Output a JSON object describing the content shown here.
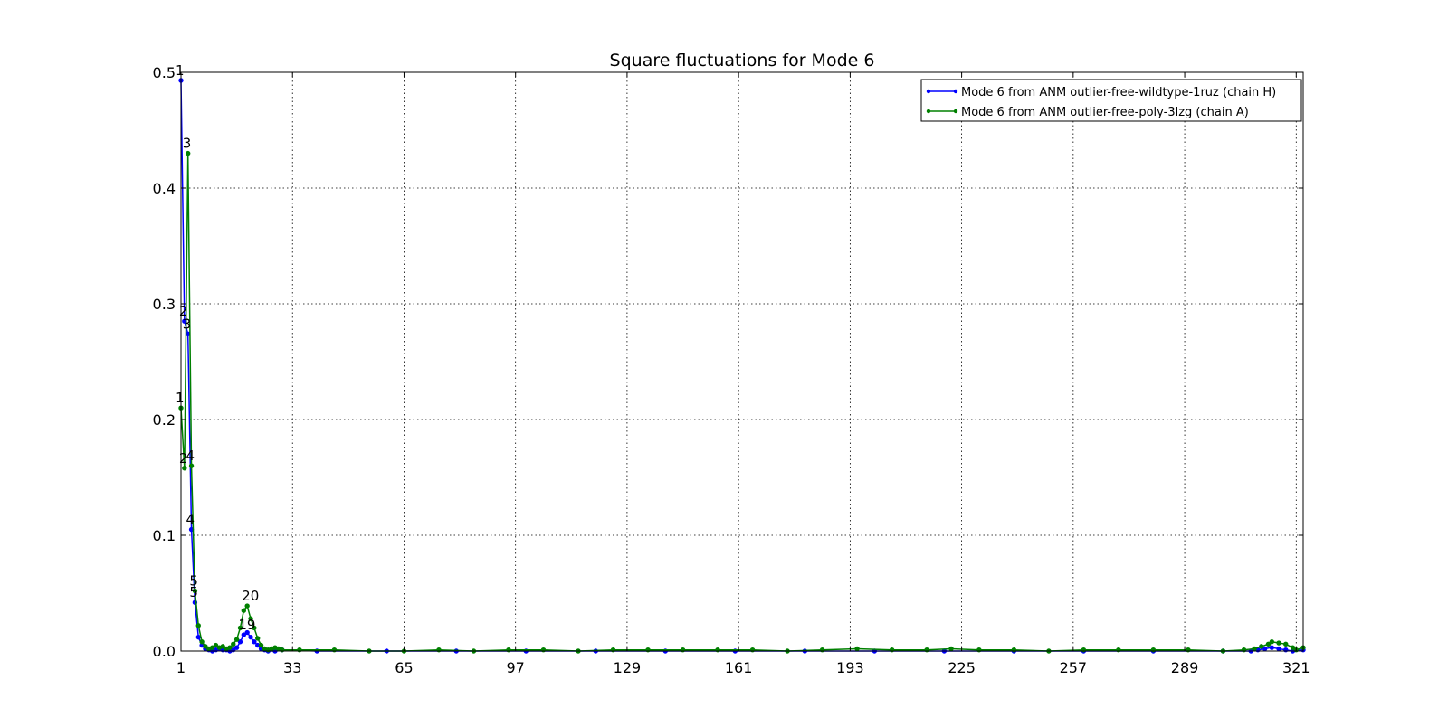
{
  "chart_data": {
    "type": "line",
    "title": "Square fluctuations for Mode 6",
    "xlabel": "",
    "ylabel": "",
    "xlim": [
      1,
      323
    ],
    "ylim": [
      0,
      0.5
    ],
    "xticks": [
      1,
      33,
      65,
      97,
      129,
      161,
      193,
      225,
      257,
      289,
      321
    ],
    "yticks": [
      0.0,
      0.1,
      0.2,
      0.3,
      0.4,
      0.5
    ],
    "ytick_labels": [
      "0.0",
      "0.1",
      "0.2",
      "0.3",
      "0.4",
      "0.5"
    ],
    "grid": true,
    "legend_position": "top-right",
    "series": [
      {
        "name": "Mode 6 from ANM outlier-free-wildtype-1ruz (chain H)",
        "color": "#0000ff",
        "points": [
          [
            1,
            0.493
          ],
          [
            2,
            0.285
          ],
          [
            3,
            0.274
          ],
          [
            4,
            0.105
          ],
          [
            5,
            0.042
          ],
          [
            6,
            0.012
          ],
          [
            7,
            0.005
          ],
          [
            8,
            0.002
          ],
          [
            9,
            0.001
          ],
          [
            10,
            0.0
          ],
          [
            11,
            0.001
          ],
          [
            12,
            0.002
          ],
          [
            13,
            0.001
          ],
          [
            14,
            0.001
          ],
          [
            15,
            0.0
          ],
          [
            16,
            0.001
          ],
          [
            17,
            0.003
          ],
          [
            18,
            0.008
          ],
          [
            19,
            0.014
          ],
          [
            20,
            0.016
          ],
          [
            21,
            0.012
          ],
          [
            22,
            0.008
          ],
          [
            23,
            0.005
          ],
          [
            24,
            0.002
          ],
          [
            25,
            0.001
          ],
          [
            26,
            0.0
          ],
          [
            28,
            0.0
          ],
          [
            30,
            0.001
          ],
          [
            40,
            0.0
          ],
          [
            60,
            0.0
          ],
          [
            80,
            0.0
          ],
          [
            100,
            0.0
          ],
          [
            120,
            0.0
          ],
          [
            140,
            0.0
          ],
          [
            160,
            0.0
          ],
          [
            180,
            0.0
          ],
          [
            200,
            0.0
          ],
          [
            220,
            0.0
          ],
          [
            240,
            0.0
          ],
          [
            260,
            0.0
          ],
          [
            280,
            0.0
          ],
          [
            300,
            0.0
          ],
          [
            308,
            0.0
          ],
          [
            310,
            0.001
          ],
          [
            312,
            0.002
          ],
          [
            314,
            0.003
          ],
          [
            316,
            0.002
          ],
          [
            318,
            0.001
          ],
          [
            320,
            0.0
          ],
          [
            323,
            0.001
          ]
        ],
        "labels": [
          {
            "x": 1,
            "y": 0.493,
            "text": "1"
          },
          {
            "x": 2,
            "y": 0.285,
            "text": "2"
          },
          {
            "x": 3,
            "y": 0.274,
            "text": "3"
          },
          {
            "x": 4,
            "y": 0.105,
            "text": "4"
          },
          {
            "x": 5,
            "y": 0.042,
            "text": "5"
          },
          {
            "x": 19,
            "y": 0.014,
            "text": "19"
          }
        ]
      },
      {
        "name": "Mode 6 from ANM outlier-free-poly-3lzg (chain A)",
        "color": "#008000",
        "points": [
          [
            1,
            0.21
          ],
          [
            2,
            0.158
          ],
          [
            3,
            0.43
          ],
          [
            4,
            0.16
          ],
          [
            5,
            0.052
          ],
          [
            6,
            0.022
          ],
          [
            7,
            0.008
          ],
          [
            8,
            0.004
          ],
          [
            9,
            0.002
          ],
          [
            10,
            0.003
          ],
          [
            11,
            0.005
          ],
          [
            12,
            0.003
          ],
          [
            13,
            0.004
          ],
          [
            14,
            0.002
          ],
          [
            15,
            0.003
          ],
          [
            16,
            0.006
          ],
          [
            17,
            0.01
          ],
          [
            18,
            0.02
          ],
          [
            19,
            0.035
          ],
          [
            20,
            0.039
          ],
          [
            21,
            0.028
          ],
          [
            22,
            0.02
          ],
          [
            23,
            0.011
          ],
          [
            24,
            0.005
          ],
          [
            25,
            0.002
          ],
          [
            26,
            0.001
          ],
          [
            27,
            0.002
          ],
          [
            28,
            0.003
          ],
          [
            29,
            0.002
          ],
          [
            30,
            0.001
          ],
          [
            35,
            0.001
          ],
          [
            45,
            0.001
          ],
          [
            55,
            0.0
          ],
          [
            65,
            0.0
          ],
          [
            75,
            0.001
          ],
          [
            85,
            0.0
          ],
          [
            95,
            0.001
          ],
          [
            105,
            0.001
          ],
          [
            115,
            0.0
          ],
          [
            125,
            0.001
          ],
          [
            135,
            0.001
          ],
          [
            145,
            0.001
          ],
          [
            155,
            0.001
          ],
          [
            165,
            0.001
          ],
          [
            175,
            0.0
          ],
          [
            185,
            0.001
          ],
          [
            195,
            0.002
          ],
          [
            205,
            0.001
          ],
          [
            215,
            0.001
          ],
          [
            222,
            0.002
          ],
          [
            230,
            0.001
          ],
          [
            240,
            0.001
          ],
          [
            250,
            0.0
          ],
          [
            260,
            0.001
          ],
          [
            270,
            0.001
          ],
          [
            280,
            0.001
          ],
          [
            290,
            0.001
          ],
          [
            300,
            0.0
          ],
          [
            306,
            0.001
          ],
          [
            309,
            0.002
          ],
          [
            311,
            0.004
          ],
          [
            313,
            0.006
          ],
          [
            314,
            0.008
          ],
          [
            316,
            0.007
          ],
          [
            318,
            0.006
          ],
          [
            320,
            0.003
          ],
          [
            321,
            0.001
          ],
          [
            323,
            0.003
          ]
        ],
        "labels": [
          {
            "x": 1,
            "y": 0.21,
            "text": "1"
          },
          {
            "x": 2,
            "y": 0.158,
            "text": "2"
          },
          {
            "x": 3,
            "y": 0.43,
            "text": "3"
          },
          {
            "x": 4,
            "y": 0.16,
            "text": "4"
          },
          {
            "x": 5,
            "y": 0.052,
            "text": "5"
          },
          {
            "x": 20,
            "y": 0.039,
            "text": "20"
          }
        ]
      }
    ]
  }
}
